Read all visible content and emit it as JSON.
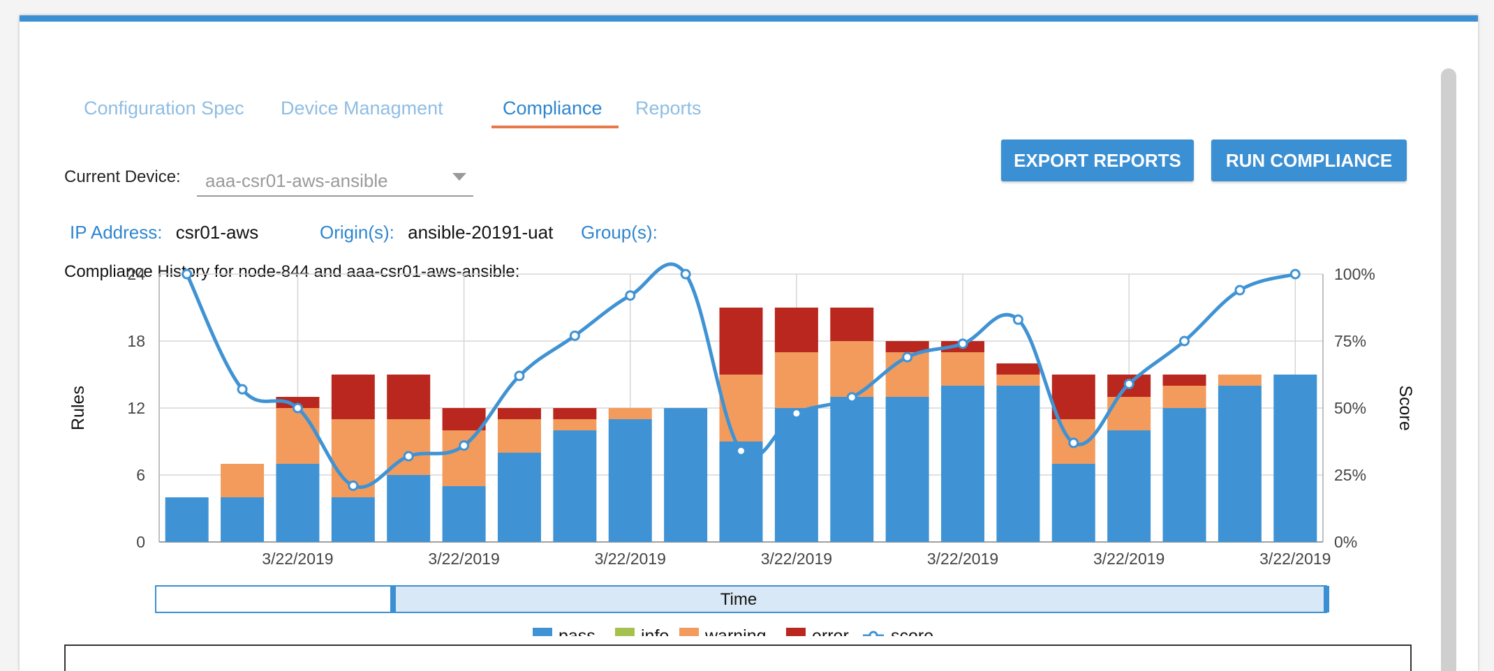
{
  "tabs": [
    {
      "label": "Configuration Spec"
    },
    {
      "label": "Device Managment"
    },
    {
      "label": "Compliance"
    },
    {
      "label": "Reports"
    }
  ],
  "device": {
    "label": "Current Device:",
    "value": "aaa-csr01-aws-ansible"
  },
  "buttons": {
    "export": "EXPORT REPORTS",
    "run": "RUN COMPLIANCE"
  },
  "meta": {
    "ip_label": "IP Address:",
    "ip_value": "csr01-aws",
    "origin_label": "Origin(s):",
    "origin_value": "ansible-20191-uat",
    "group_label": "Group(s):"
  },
  "history": {
    "prefix": "Compliance History for ",
    "node": "node-844",
    "and": " and ",
    "device": "aaa-csr01-aws-ansible",
    "suffix": ":"
  },
  "colors": {
    "accent": "#3b8fd3",
    "pass": "#3f93d4",
    "info": "#a5c24f",
    "warning": "#f29b5d",
    "error": "#b9271e",
    "score": "#3f93d4",
    "tab_underline": "#e8784a"
  },
  "chart_data": {
    "type": "bar",
    "stacked": true,
    "ylabel": "Rules",
    "y2label": "Score",
    "ylim": [
      0,
      24
    ],
    "yticks": [
      "0",
      "6",
      "12",
      "18",
      "24"
    ],
    "y2lim": [
      0,
      100
    ],
    "y2ticks": [
      "0%",
      "25%",
      "50%",
      "75%",
      "100%"
    ],
    "xticklabels": [
      "3/22/2019",
      "3/22/2019",
      "3/22/2019",
      "3/22/2019",
      "3/22/2019",
      "3/22/2019",
      "3/22/2019"
    ],
    "grid": true,
    "series": [
      {
        "name": "pass",
        "values": [
          4,
          4,
          7,
          4,
          6,
          5,
          8,
          10,
          11,
          12,
          9,
          12,
          13,
          13,
          14,
          14,
          7,
          10,
          12,
          14,
          15
        ]
      },
      {
        "name": "info",
        "values": [
          0,
          0,
          0,
          0,
          0,
          0,
          0,
          0,
          0,
          0,
          0,
          0,
          0,
          0,
          0,
          0,
          0,
          0,
          0,
          0,
          0
        ]
      },
      {
        "name": "warning",
        "values": [
          0,
          3,
          5,
          7,
          5,
          5,
          3,
          1,
          1,
          0,
          6,
          5,
          5,
          4,
          3,
          1,
          4,
          3,
          2,
          1,
          0
        ]
      },
      {
        "name": "error",
        "values": [
          0,
          0,
          1,
          4,
          4,
          2,
          1,
          1,
          0,
          0,
          6,
          4,
          3,
          1,
          1,
          1,
          4,
          2,
          1,
          0,
          0
        ]
      }
    ],
    "score": {
      "name": "score",
      "values": [
        100,
        57,
        50,
        21,
        32,
        36,
        62,
        77,
        92,
        100,
        34,
        48,
        54,
        69,
        74,
        83,
        37,
        59,
        75,
        94,
        100
      ]
    },
    "legend": [
      "pass",
      "info",
      "warning",
      "error",
      "score"
    ],
    "legend_position": "bottom",
    "navigator_label": "Time"
  }
}
